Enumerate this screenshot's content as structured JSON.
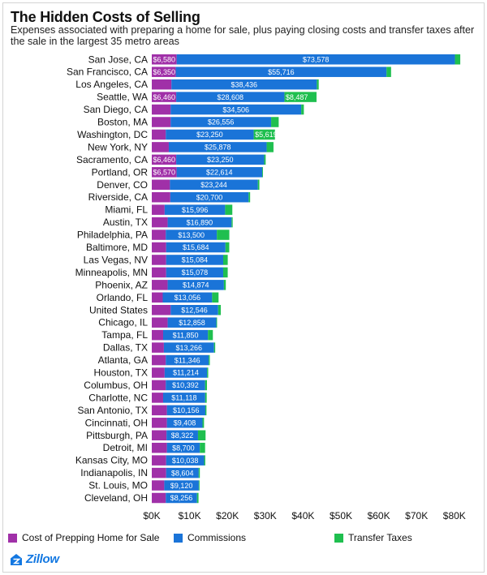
{
  "title": "The Hidden Costs of Selling",
  "subtitle": "Expenses associated with preparing a home for sale, plus paying closing costs and transfer taxes after the sale in the largest 35 metro areas",
  "brand": "Zillow",
  "colors": {
    "prep": "#a030a8",
    "commissions": "#1a74d8",
    "transfer": "#1fbf4f",
    "text": "#111111"
  },
  "chart_data": {
    "type": "bar",
    "orientation": "horizontal",
    "stacked": true,
    "title": "The Hidden Costs of Selling",
    "xlabel": "",
    "ylabel": "",
    "xlim": [
      0,
      85000
    ],
    "x_ticks": [
      0,
      10000,
      20000,
      30000,
      40000,
      50000,
      60000,
      70000,
      80000
    ],
    "x_tick_labels": [
      "$0K",
      "$10K",
      "$20K",
      "$30K",
      "$40K",
      "$50K",
      "$60K",
      "$70K",
      "$80K"
    ],
    "grid": false,
    "legend_position": "bottom",
    "categories": [
      "San Jose, CA",
      "San Francisco, CA",
      "Los Angeles, CA",
      "Seattle, WA",
      "San Diego, CA",
      "Boston, MA",
      "Washington, DC",
      "New York, NY",
      "Sacramento, CA",
      "Portland, OR",
      "Denver, CO",
      "Riverside, CA",
      "Miami, FL",
      "Austin, TX",
      "Philadelphia, PA",
      "Baltimore, MD",
      "Las Vegas, NV",
      "Minneapolis, MN",
      "Phoenix, AZ",
      "Orlando, FL",
      "United States",
      "Chicago, IL",
      "Tampa, FL",
      "Dallas, TX",
      "Atlanta, GA",
      "Houston, TX",
      "Columbus, OH",
      "Charlotte, NC",
      "San Antonio, TX",
      "Cincinnati, OH",
      "Pittsburgh, PA",
      "Detroit, MI",
      "Kansas City, MO",
      "Indianapolis, IN",
      "St. Louis, MO",
      "Cleveland, OH"
    ],
    "series": [
      {
        "name": "Cost of Prepping Home for Sale",
        "values": [
          6580,
          6350,
          5200,
          6460,
          5000,
          5000,
          3700,
          4500,
          6460,
          6570,
          4800,
          4900,
          3400,
          4200,
          3700,
          3800,
          3800,
          3800,
          4200,
          2900,
          5000,
          4200,
          3000,
          3200,
          3700,
          3400,
          3700,
          3000,
          4000,
          4000,
          3900,
          4000,
          3800,
          3800,
          3300,
          3700
        ],
        "labels": [
          "$6,580",
          "$6,350",
          "",
          "$6,460",
          "",
          "",
          "",
          "",
          "$6,460",
          "$6,570",
          "",
          "",
          "",
          "",
          "",
          "",
          "",
          "",
          "",
          "",
          "",
          "",
          "",
          "",
          "",
          "",
          "",
          "",
          "",
          "",
          "",
          "",
          "",
          "",
          "",
          ""
        ]
      },
      {
        "name": "Commissions",
        "values": [
          73578,
          55716,
          38436,
          28608,
          34506,
          26556,
          23250,
          25878,
          23250,
          22614,
          23244,
          20700,
          15996,
          16890,
          13500,
          15684,
          15084,
          15078,
          14874,
          13056,
          12546,
          12858,
          11850,
          13266,
          11346,
          11214,
          10392,
          11118,
          10156,
          9408,
          8322,
          8700,
          10038,
          8604,
          9120,
          8256
        ],
        "labels": [
          "$73,578",
          "$55,716",
          "$38,436",
          "$28,608",
          "$34,506",
          "$26,556",
          "$23,250",
          "$25,878",
          "$23,250",
          "$22,614",
          "$23,244",
          "$20,700",
          "$15,996",
          "$16,890",
          "$13,500",
          "$15,684",
          "$15,084",
          "$15,078",
          "$14,874",
          "$13,056",
          "$12,546",
          "$12,858",
          "$11,850",
          "$13,266",
          "$11,346",
          "$11,214",
          "$10,392",
          "$11,118",
          "$10,156",
          "$9,408",
          "$8,322",
          "$8,700",
          "$10,038",
          "$8,604",
          "$9,120",
          "$8,256"
        ]
      },
      {
        "name": "Transfer Taxes",
        "values": [
          1400,
          1200,
          500,
          8487,
          700,
          2000,
          5619,
          1800,
          400,
          200,
          400,
          400,
          1900,
          300,
          3300,
          1000,
          1200,
          1200,
          500,
          1700,
          700,
          200,
          1300,
          300,
          300,
          300,
          500,
          400,
          300,
          400,
          2000,
          1400,
          300,
          300,
          200,
          400
        ],
        "labels": [
          "",
          "",
          "",
          "$8,487",
          "",
          "",
          "$5,619",
          "",
          "",
          "",
          "",
          "",
          "",
          "",
          "",
          "",
          "",
          "",
          "",
          "",
          "",
          "",
          "",
          "",
          "",
          "",
          "",
          "",
          "",
          "",
          "",
          "",
          "",
          "",
          "",
          ""
        ]
      }
    ]
  }
}
